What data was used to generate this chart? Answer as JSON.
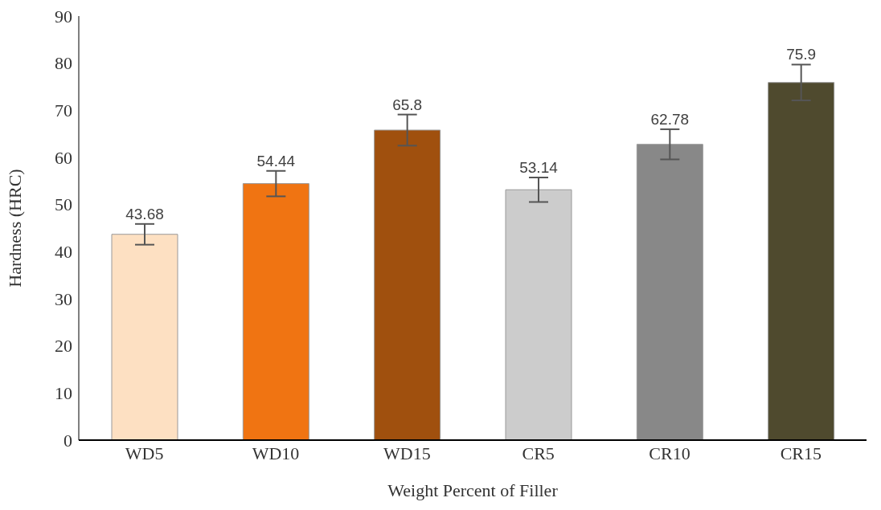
{
  "chart_data": {
    "type": "bar",
    "xlabel": "Weight Percent of Filler",
    "ylabel": "Hardness (HRC)",
    "categories": [
      "WD5",
      "WD10",
      "WD15",
      "CR5",
      "CR10",
      "CR15"
    ],
    "values": [
      43.68,
      54.44,
      65.8,
      53.14,
      62.78,
      75.9
    ],
    "colors": [
      "#fde0c2",
      "#f07412",
      "#a0500e",
      "#cccccc",
      "#888888",
      "#4f4a2e"
    ],
    "errors": [
      2.2,
      2.7,
      3.3,
      2.6,
      3.2,
      3.8
    ],
    "data_labels": true,
    "ylim": [
      0,
      90
    ],
    "yticks": [
      0,
      10,
      20,
      30,
      40,
      50,
      60,
      70,
      80,
      90
    ],
    "grid": false,
    "legend": false
  }
}
